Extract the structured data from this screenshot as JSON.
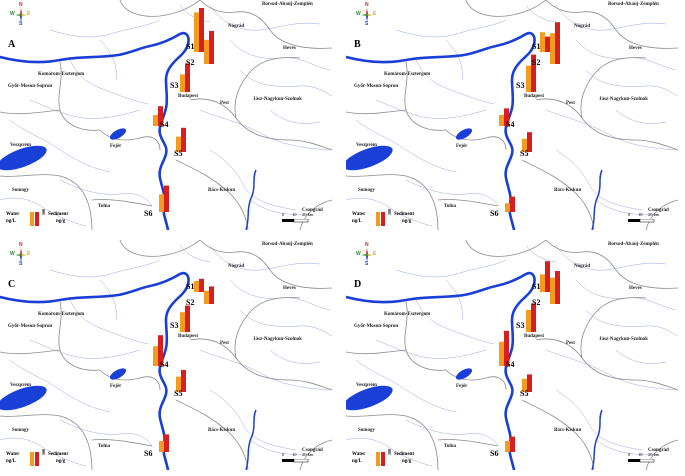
{
  "colors": {
    "river": "#1a3fd6",
    "stream": "#9aa8e8",
    "border": "#8a8a8a",
    "water_bar": "#f39c1f",
    "sediment_bar": "#d81e1e",
    "compass_n": "#d81e1e",
    "compass_e": "#e8a21f",
    "compass_w": "#2c8a2c",
    "compass_s": "#1a3fd6"
  },
  "compass": {
    "n": "N",
    "e": "E",
    "s": "S",
    "w": "W"
  },
  "regions": {
    "borsod": "Borsod-Abaúj-Zemplén",
    "nograd": "Nógrád",
    "heves": "Heves",
    "komarom": "Komárom-Esztergom",
    "gyor": "Győr-Moson-Sopron",
    "budapest": "Budapest",
    "pest": "Pest",
    "jasz": "Jász-Nagykun-Szolnok",
    "veszprem": "Veszprém",
    "fejer": "Fejér",
    "somogy": "Somogy",
    "tolna": "Tolna",
    "bacs": "Bács-Kiskun",
    "csongrad": "Csongrád"
  },
  "legend": {
    "water": "Water",
    "water_unit": "ng/L",
    "sediment": "Sediment",
    "sediment_unit": "ng/g",
    "scale_value": "100"
  },
  "scale": {
    "zero": "0",
    "mid": "10",
    "end": "20 km"
  },
  "sites": [
    "S1",
    "S2",
    "S3",
    "S4",
    "S5",
    "S6"
  ],
  "panels": [
    {
      "id": "A",
      "bars": [
        {
          "site": "S1",
          "water": 0.9,
          "sediment": 1.0
        },
        {
          "site": "S2",
          "water": 0.55,
          "sediment": 0.75
        },
        {
          "site": "S3",
          "water": 0.4,
          "sediment": 0.65
        },
        {
          "site": "S4",
          "water": 0.25,
          "sediment": 0.45
        },
        {
          "site": "S5",
          "water": 0.35,
          "sediment": 0.55
        },
        {
          "site": "S6",
          "water": 0.4,
          "sediment": 0.6
        }
      ]
    },
    {
      "id": "B",
      "bars": [
        {
          "site": "S1",
          "water": 0.45,
          "sediment": 0.35
        },
        {
          "site": "S2",
          "water": 0.7,
          "sediment": 0.95
        },
        {
          "site": "S3",
          "water": 0.6,
          "sediment": 0.85
        },
        {
          "site": "S4",
          "water": 0.25,
          "sediment": 0.4
        },
        {
          "site": "S5",
          "water": 0.3,
          "sediment": 0.45
        },
        {
          "site": "S6",
          "water": 0.2,
          "sediment": 0.35
        }
      ]
    },
    {
      "id": "C",
      "bars": [
        {
          "site": "S1",
          "water": 0.25,
          "sediment": 0.3
        },
        {
          "site": "S2",
          "water": 0.3,
          "sediment": 0.4
        },
        {
          "site": "S3",
          "water": 0.45,
          "sediment": 0.6
        },
        {
          "site": "S4",
          "water": 0.45,
          "sediment": 0.7
        },
        {
          "site": "S5",
          "water": 0.35,
          "sediment": 0.5
        },
        {
          "site": "S6",
          "water": 0.25,
          "sediment": 0.4
        }
      ]
    },
    {
      "id": "D",
      "bars": [
        {
          "site": "S1",
          "water": 0.4,
          "sediment": 0.7
        },
        {
          "site": "S2",
          "water": 0.6,
          "sediment": 0.75
        },
        {
          "site": "S3",
          "water": 0.5,
          "sediment": 0.65
        },
        {
          "site": "S4",
          "water": 0.55,
          "sediment": 0.8
        },
        {
          "site": "S5",
          "water": 0.3,
          "sediment": 0.4
        },
        {
          "site": "S6",
          "water": 0.25,
          "sediment": 0.35
        }
      ]
    }
  ]
}
